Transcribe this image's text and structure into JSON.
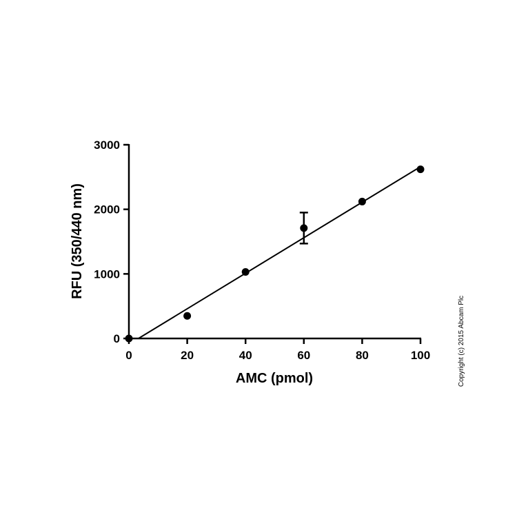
{
  "chart_data": {
    "type": "scatter",
    "xlabel": "AMC (pmol)",
    "ylabel": "RFU (350/440 nm)",
    "xlim": [
      0,
      100
    ],
    "ylim": [
      0,
      3000
    ],
    "x_ticks": [
      0,
      20,
      40,
      60,
      80,
      100
    ],
    "y_ticks": [
      0,
      1000,
      2000,
      3000
    ],
    "grid": false,
    "points": [
      {
        "x": 0,
        "y": 0,
        "err": 0
      },
      {
        "x": 20,
        "y": 350,
        "err": 0
      },
      {
        "x": 40,
        "y": 1030,
        "err": 0
      },
      {
        "x": 60,
        "y": 1710,
        "err": 240
      },
      {
        "x": 80,
        "y": 2120,
        "err": 0
      },
      {
        "x": 100,
        "y": 2620,
        "err": 0
      }
    ],
    "fit_line": {
      "x": [
        0,
        100
      ],
      "y": [
        -90,
        2660
      ]
    }
  },
  "copyright": "Copyright (c) 2015 Abcam Plc"
}
